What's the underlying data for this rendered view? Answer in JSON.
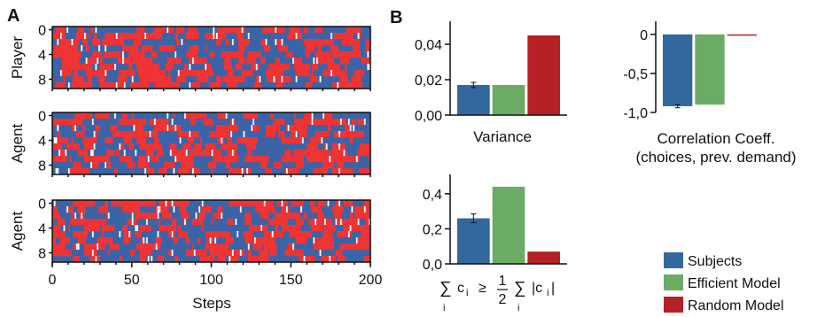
{
  "panel_labels": {
    "a": "A",
    "b": "B"
  },
  "raster_panels": [
    {
      "ylabel": "Player",
      "yticks": [
        "0",
        "4",
        "8"
      ],
      "seed": 11,
      "blue_bias": 0.5
    },
    {
      "ylabel": "Agent",
      "yticks": [
        "0",
        "4",
        "8"
      ],
      "seed": 29,
      "blue_bias": 0.55
    },
    {
      "ylabel": "Agent",
      "yticks": [
        "0",
        "4",
        "8"
      ],
      "seed": 47,
      "blue_bias": 0.45
    }
  ],
  "raster_xaxis": {
    "label": "Steps",
    "ticks": [
      "0",
      "50",
      "100",
      "150",
      "200"
    ],
    "range": [
      0,
      200
    ]
  },
  "colors": {
    "choice_red": "#f03333",
    "choice_blue": "#3a64a8",
    "subjects": "#33689f",
    "efficient": "#6bab66",
    "random": "#b52124"
  },
  "chart_data": [
    {
      "type": "bar",
      "title": "",
      "xlabel": "Variance",
      "ylabel": "",
      "categories": [
        "Subjects",
        "Efficient Model",
        "Random Model"
      ],
      "values": [
        0.017,
        0.017,
        0.045
      ],
      "errors": [
        0.0015,
        0,
        0
      ],
      "ylim": [
        0,
        0.05
      ],
      "yticks": [
        0,
        0.02,
        0.04
      ],
      "ytick_labels": [
        "0,00",
        "0,02",
        "0,04"
      ]
    },
    {
      "type": "bar",
      "title": "",
      "xlabel_lines": [
        "Correlation Coeff.",
        "(choices, prev. demand)"
      ],
      "ylabel": "",
      "categories": [
        "Subjects",
        "Efficient Model",
        "Random Model"
      ],
      "values": [
        -0.92,
        -0.9,
        -0.01
      ],
      "errors": [
        0.02,
        0,
        0
      ],
      "ylim": [
        -1.0,
        0.1
      ],
      "yticks": [
        0,
        -0.5,
        -1.0
      ],
      "ytick_labels": [
        "0",
        "-0,5",
        "-1,0"
      ]
    },
    {
      "type": "bar",
      "title": "",
      "ylabel": "",
      "categories": [
        "Subjects",
        "Efficient Model",
        "Random Model"
      ],
      "values": [
        0.26,
        0.44,
        0.07
      ],
      "errors": [
        0.025,
        0,
        0
      ],
      "ylim": [
        0,
        0.48
      ],
      "yticks": [
        0,
        0.2,
        0.4
      ],
      "ytick_labels": [
        "0,0",
        "0,2",
        "0,4"
      ]
    }
  ],
  "formula": {
    "sum": "∑",
    "c": "c",
    "sub_i": "i",
    "geq": "≥",
    "half_num": "1",
    "half_den": "2",
    "abs_c": "|c",
    "abs_close": "|"
  },
  "legend": {
    "items": [
      {
        "label": "Subjects",
        "color": "#33689f"
      },
      {
        "label": "Efficient Model",
        "color": "#6bab66"
      },
      {
        "label": "Random Model",
        "color": "#b52124"
      }
    ]
  }
}
